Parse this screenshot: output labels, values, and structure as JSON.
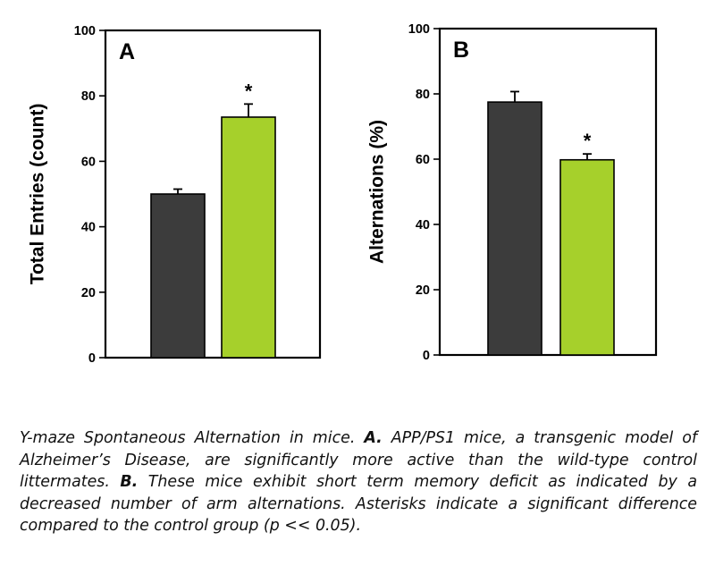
{
  "chart_data": [
    {
      "type": "bar",
      "panel_label": "A",
      "ylabel": "Total Entries (count)",
      "ylim": [
        0,
        100
      ],
      "yticks": [
        0,
        20,
        40,
        60,
        80,
        100
      ],
      "ytick_labels": [
        "0",
        "20",
        "40",
        "60",
        "80",
        "100"
      ],
      "categories": [
        "",
        ""
      ],
      "values": [
        50,
        73.5
      ],
      "errors": [
        1.5,
        4
      ],
      "bar_colors": [
        "#3c3c3c",
        "#a6d02b"
      ],
      "annotations": [
        "",
        "*"
      ]
    },
    {
      "type": "bar",
      "panel_label": "B",
      "ylabel": "Alternations (%)",
      "ylim": [
        0,
        100
      ],
      "yticks": [
        0,
        20,
        40,
        60,
        80,
        100
      ],
      "ytick_labels": [
        "0",
        "20",
        "40",
        "60",
        "80",
        "100"
      ],
      "categories": [
        "",
        ""
      ],
      "values": [
        77.5,
        59.8
      ],
      "errors": [
        3.2,
        1.8
      ],
      "bar_colors": [
        "#3c3c3c",
        "#a6d02b"
      ],
      "annotations": [
        "",
        "*"
      ]
    }
  ],
  "caption": {
    "part1": "Y-maze Spontaneous Alternation in mice. ",
    "label_a": "A.",
    "part2": " APP/PS1 mice, a transgenic model of Alzheimer’s Disease, are significantly more active than the wild-type control littermates. ",
    "label_b": "B.",
    "part3": " These mice exhibit short term memory deficit as indicated by a decreased number of arm alternations. Asterisks indicate a significant difference compared to the control group (p << 0.05)."
  }
}
